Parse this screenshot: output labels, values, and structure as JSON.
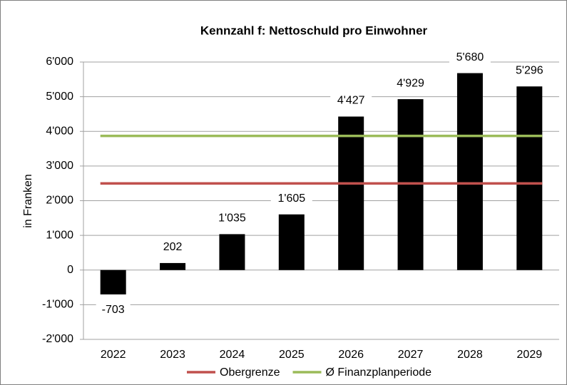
{
  "chart_data": {
    "type": "bar",
    "title": "Kennzahl f: Nettoschuld pro Einwohner",
    "y_label": "in Franken",
    "categories": [
      "2022",
      "2023",
      "2024",
      "2025",
      "2026",
      "2027",
      "2028",
      "2029"
    ],
    "values": [
      -703,
      202,
      1035,
      1605,
      4427,
      4929,
      5680,
      5296
    ],
    "value_labels": [
      "-703",
      "202",
      "1'035",
      "1'605",
      "4'427",
      "4'929",
      "5'680",
      "5'296"
    ],
    "color": "#000000",
    "lines": [
      {
        "name": "Obergrenze",
        "color": "#c0504d",
        "value": 2500
      },
      {
        "name": "Ø Finanzplanperiode",
        "color": "#9bbb59",
        "value": 3870
      }
    ],
    "ylim": [
      -2000,
      6000
    ],
    "yticks": [
      {
        "value": -2000,
        "label": "-2'000"
      },
      {
        "value": -1000,
        "label": "-1'000"
      },
      0,
      {
        "value": 1000,
        "label": "1'000"
      },
      {
        "value": 2000,
        "label": "2'000"
      },
      {
        "value": 3000,
        "label": "3'000"
      },
      {
        "value": 4000,
        "label": "4'000"
      },
      {
        "value": 5000,
        "label": "5'000"
      },
      {
        "value": 6000,
        "label": "6'000"
      }
    ],
    "grid": true
  }
}
